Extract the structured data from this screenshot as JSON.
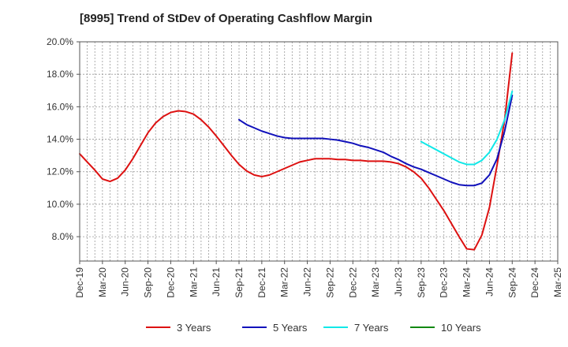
{
  "chart_data": {
    "type": "line",
    "title": "[8995]  Trend of StDev of Operating Cashflow Margin",
    "xlabel": "",
    "ylabel": "",
    "ylim": [
      6.5,
      20.0
    ],
    "y_ticks": [
      8.0,
      10.0,
      12.0,
      14.0,
      16.0,
      18.0,
      20.0
    ],
    "y_tick_labels": [
      "8.0%",
      "10.0%",
      "12.0%",
      "14.0%",
      "16.0%",
      "18.0%",
      "20.0%"
    ],
    "x_range": [
      "2019-12",
      "2025-03"
    ],
    "x_tick_labels": [
      "Dec-19",
      "Mar-20",
      "Jun-20",
      "Sep-20",
      "Dec-20",
      "Mar-21",
      "Jun-21",
      "Sep-21",
      "Dec-21",
      "Mar-22",
      "Jun-22",
      "Sep-22",
      "Dec-22",
      "Mar-23",
      "Jun-23",
      "Sep-23",
      "Dec-23",
      "Mar-24",
      "Jun-24",
      "Sep-24",
      "Dec-24",
      "Mar-25"
    ],
    "grid": true,
    "legend_position": "bottom",
    "series": [
      {
        "name": "3 Years",
        "color": "#dd1111",
        "points": [
          [
            "2019-12",
            13.1
          ],
          [
            "2020-01",
            12.6
          ],
          [
            "2020-02",
            12.1
          ],
          [
            "2020-03",
            11.55
          ],
          [
            "2020-04",
            11.4
          ],
          [
            "2020-05",
            11.6
          ],
          [
            "2020-06",
            12.1
          ],
          [
            "2020-07",
            12.8
          ],
          [
            "2020-08",
            13.6
          ],
          [
            "2020-09",
            14.4
          ],
          [
            "2020-10",
            15.0
          ],
          [
            "2020-11",
            15.4
          ],
          [
            "2020-12",
            15.65
          ],
          [
            "2021-01",
            15.75
          ],
          [
            "2021-02",
            15.7
          ],
          [
            "2021-03",
            15.55
          ],
          [
            "2021-04",
            15.2
          ],
          [
            "2021-05",
            14.75
          ],
          [
            "2021-06",
            14.2
          ],
          [
            "2021-07",
            13.6
          ],
          [
            "2021-08",
            13.0
          ],
          [
            "2021-09",
            12.45
          ],
          [
            "2021-10",
            12.05
          ],
          [
            "2021-11",
            11.8
          ],
          [
            "2021-12",
            11.7
          ],
          [
            "2022-01",
            11.8
          ],
          [
            "2022-02",
            12.0
          ],
          [
            "2022-03",
            12.2
          ],
          [
            "2022-04",
            12.4
          ],
          [
            "2022-05",
            12.6
          ],
          [
            "2022-06",
            12.7
          ],
          [
            "2022-07",
            12.8
          ],
          [
            "2022-08",
            12.8
          ],
          [
            "2022-09",
            12.8
          ],
          [
            "2022-10",
            12.75
          ],
          [
            "2022-11",
            12.75
          ],
          [
            "2022-12",
            12.7
          ],
          [
            "2023-01",
            12.7
          ],
          [
            "2023-02",
            12.65
          ],
          [
            "2023-03",
            12.65
          ],
          [
            "2023-04",
            12.65
          ],
          [
            "2023-05",
            12.6
          ],
          [
            "2023-06",
            12.5
          ],
          [
            "2023-07",
            12.3
          ],
          [
            "2023-08",
            12.0
          ],
          [
            "2023-09",
            11.6
          ],
          [
            "2023-10",
            11.0
          ],
          [
            "2023-11",
            10.3
          ],
          [
            "2023-12",
            9.6
          ],
          [
            "2024-01",
            8.8
          ],
          [
            "2024-02",
            8.0
          ],
          [
            "2024-03",
            7.25
          ],
          [
            "2024-04",
            7.2
          ],
          [
            "2024-05",
            8.1
          ],
          [
            "2024-06",
            9.8
          ],
          [
            "2024-07",
            12.4
          ],
          [
            "2024-08",
            15.2
          ],
          [
            "2024-09",
            19.3
          ]
        ]
      },
      {
        "name": "5 Years",
        "color": "#1111bb",
        "points": [
          [
            "2021-09",
            15.2
          ],
          [
            "2021-10",
            14.9
          ],
          [
            "2021-11",
            14.7
          ],
          [
            "2021-12",
            14.5
          ],
          [
            "2022-01",
            14.35
          ],
          [
            "2022-02",
            14.2
          ],
          [
            "2022-03",
            14.1
          ],
          [
            "2022-04",
            14.05
          ],
          [
            "2022-05",
            14.05
          ],
          [
            "2022-06",
            14.05
          ],
          [
            "2022-07",
            14.05
          ],
          [
            "2022-08",
            14.05
          ],
          [
            "2022-09",
            14.0
          ],
          [
            "2022-10",
            13.95
          ],
          [
            "2022-11",
            13.85
          ],
          [
            "2022-12",
            13.75
          ],
          [
            "2023-01",
            13.6
          ],
          [
            "2023-02",
            13.5
          ],
          [
            "2023-03",
            13.35
          ],
          [
            "2023-04",
            13.2
          ],
          [
            "2023-05",
            12.95
          ],
          [
            "2023-06",
            12.75
          ],
          [
            "2023-07",
            12.5
          ],
          [
            "2023-08",
            12.3
          ],
          [
            "2023-09",
            12.15
          ],
          [
            "2023-10",
            11.95
          ],
          [
            "2023-11",
            11.75
          ],
          [
            "2023-12",
            11.55
          ],
          [
            "2024-01",
            11.35
          ],
          [
            "2024-02",
            11.2
          ],
          [
            "2024-03",
            11.15
          ],
          [
            "2024-04",
            11.15
          ],
          [
            "2024-05",
            11.3
          ],
          [
            "2024-06",
            11.8
          ],
          [
            "2024-07",
            12.8
          ],
          [
            "2024-08",
            14.5
          ],
          [
            "2024-09",
            16.7
          ]
        ]
      },
      {
        "name": "7 Years",
        "color": "#11e8e8",
        "points": [
          [
            "2023-09",
            13.85
          ],
          [
            "2023-10",
            13.6
          ],
          [
            "2023-11",
            13.35
          ],
          [
            "2023-12",
            13.1
          ],
          [
            "2024-01",
            12.85
          ],
          [
            "2024-02",
            12.6
          ],
          [
            "2024-03",
            12.45
          ],
          [
            "2024-04",
            12.45
          ],
          [
            "2024-05",
            12.7
          ],
          [
            "2024-06",
            13.2
          ],
          [
            "2024-07",
            14.0
          ],
          [
            "2024-08",
            15.2
          ],
          [
            "2024-09",
            16.95
          ]
        ]
      },
      {
        "name": "10 Years",
        "color": "#118811",
        "points": []
      }
    ]
  }
}
